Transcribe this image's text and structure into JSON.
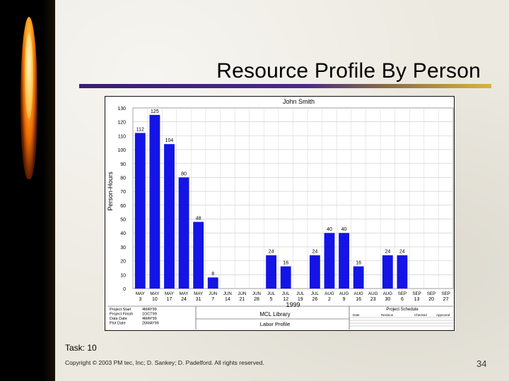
{
  "slide": {
    "title": "Resource Profile By Person",
    "task_label": "Task:  10",
    "copyright": "Copyright © 2003 PM tec, Inc; D. Sankey; D. Padelford. All rights reserved.",
    "page_number": "34"
  },
  "chart_data": {
    "type": "bar",
    "title": "John Smith",
    "ylabel": "Person-Hours",
    "xlabel": "1999",
    "ylim": [
      0,
      130
    ],
    "yticks": [
      0,
      10,
      20,
      30,
      40,
      50,
      60,
      70,
      80,
      90,
      100,
      110,
      120,
      130
    ],
    "grid": true,
    "bar_color": "#1414e6",
    "categories": [
      {
        "month": "MAY",
        "day": "3"
      },
      {
        "month": "MAY",
        "day": "10"
      },
      {
        "month": "MAY",
        "day": "17"
      },
      {
        "month": "MAY",
        "day": "24"
      },
      {
        "month": "MAY",
        "day": "31"
      },
      {
        "month": "JUN",
        "day": "7"
      },
      {
        "month": "JUN",
        "day": "14"
      },
      {
        "month": "JUN",
        "day": "21"
      },
      {
        "month": "JUN",
        "day": "28"
      },
      {
        "month": "JUL",
        "day": "5"
      },
      {
        "month": "JUL",
        "day": "12"
      },
      {
        "month": "JUL",
        "day": "19"
      },
      {
        "month": "JUL",
        "day": "26"
      },
      {
        "month": "AUG",
        "day": "2"
      },
      {
        "month": "AUG",
        "day": "9"
      },
      {
        "month": "AUG",
        "day": "16"
      },
      {
        "month": "AUG",
        "day": "23"
      },
      {
        "month": "AUG",
        "day": "30"
      },
      {
        "month": "SEP",
        "day": "6"
      },
      {
        "month": "SEP",
        "day": "13"
      },
      {
        "month": "SEP",
        "day": "20"
      },
      {
        "month": "SEP",
        "day": "27"
      }
    ],
    "values": [
      112,
      125,
      104,
      80,
      48,
      8,
      0,
      0,
      0,
      24,
      16,
      0,
      24,
      40,
      40,
      16,
      0,
      24,
      24,
      0,
      0,
      0
    ],
    "footer": {
      "meta_labels": [
        "Project Start",
        "Project Finish",
        "Data Date",
        "Plot Date"
      ],
      "meta_values": [
        "4MAY99",
        "1OCT99",
        "4MAY99",
        "26MAY99"
      ],
      "company": "MCL Library",
      "report": "Labor Profile",
      "schedule_title": "Project Schedule",
      "schedule_cols": [
        "Date",
        "Revision",
        "Checked",
        "Approved"
      ]
    }
  }
}
